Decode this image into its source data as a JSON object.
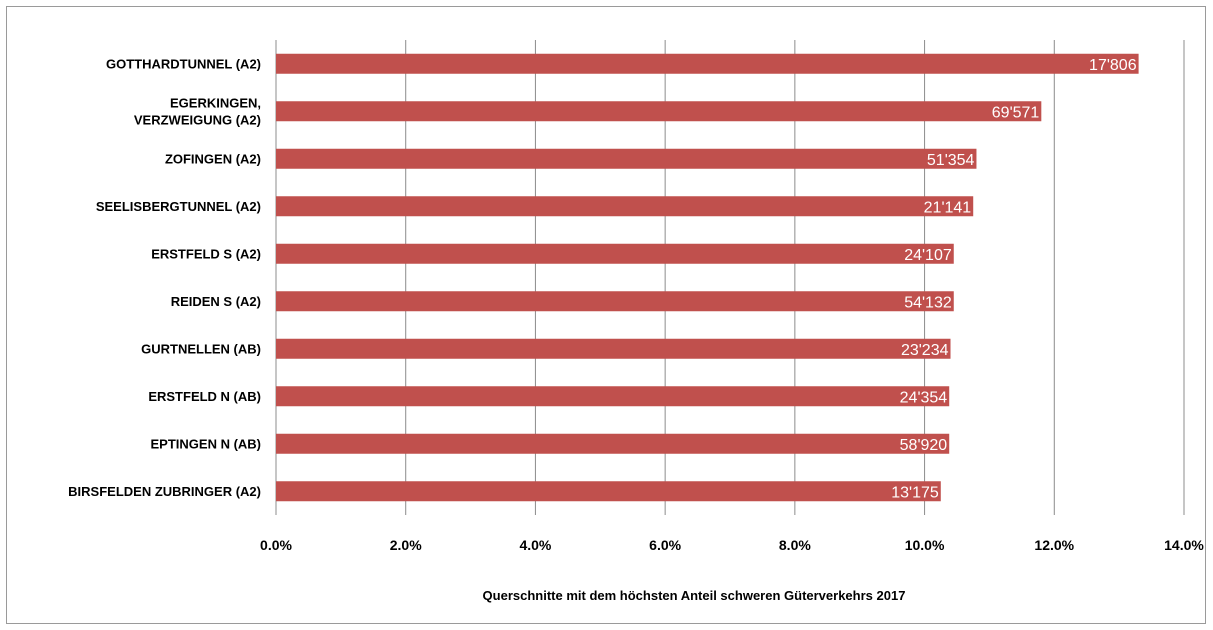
{
  "chart_data": {
    "type": "bar",
    "orientation": "horizontal",
    "title": "",
    "xlabel": "Querschnitte mit dem höchsten Anteil schweren Güterverkehrs 2017",
    "ylabel": "",
    "xlim": [
      0,
      14
    ],
    "x_ticks": [
      "0.0%",
      "2.0%",
      "4.0%",
      "6.0%",
      "8.0%",
      "10.0%",
      "12.0%",
      "14.0%"
    ],
    "grid": "vertical",
    "legend": "none",
    "bar_color": "#c0504d",
    "categories": [
      [
        "GOTTHARDTUNNEL (A2)"
      ],
      [
        "EGERKINGEN,",
        "VERZWEIGUNG (A2)"
      ],
      [
        "ZOFINGEN (A2)"
      ],
      [
        "SEELISBERGTUNNEL (A2)"
      ],
      [
        "ERSTFELD S (A2)"
      ],
      [
        "REIDEN S (A2)"
      ],
      [
        "GURTNELLEN (AB)"
      ],
      [
        "ERSTFELD N (AB)"
      ],
      [
        "EPTINGEN N (AB)"
      ],
      [
        "BIRSFELDEN ZUBRINGER (A2)"
      ]
    ],
    "values": [
      13.3,
      11.8,
      10.8,
      10.75,
      10.45,
      10.45,
      10.4,
      10.38,
      10.38,
      10.25
    ],
    "data_labels": [
      "17'806",
      "69'571",
      "51'354",
      "21'141",
      "24'107",
      "54'132",
      "23'234",
      "24'354",
      "58'920",
      "13'175"
    ]
  }
}
